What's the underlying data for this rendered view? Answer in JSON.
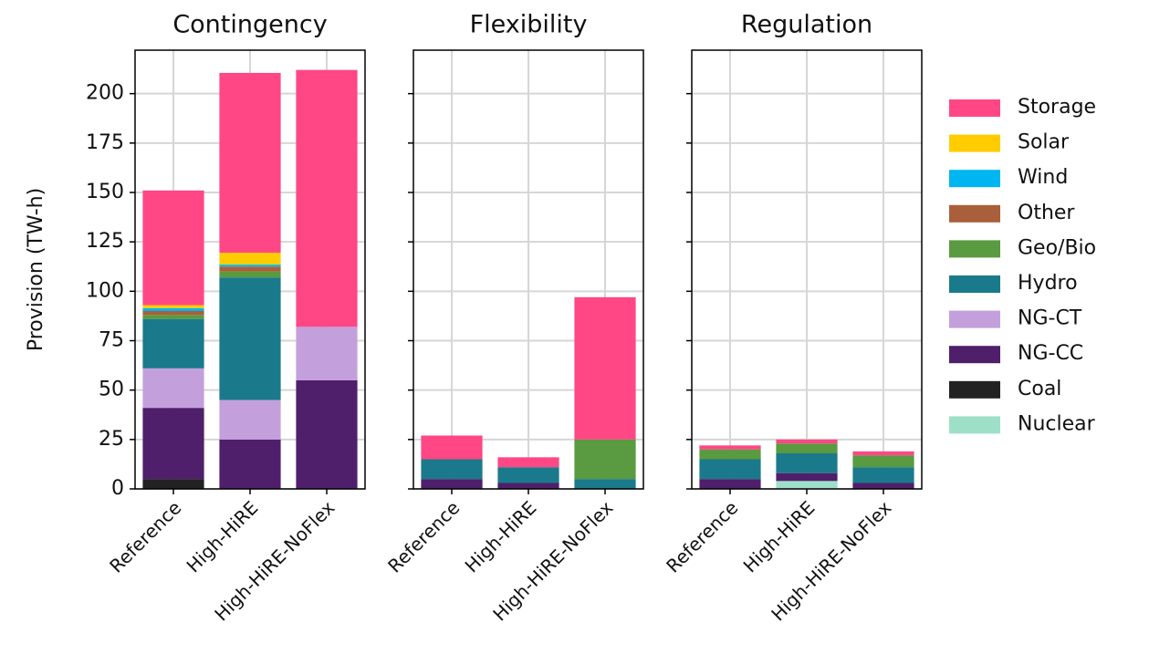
{
  "chart_data": [
    {
      "type": "stacked-bar",
      "title": "Contingency",
      "ylabel": "Provision (TW-h)",
      "categories": [
        "Reference",
        "High-HiRE",
        "High-HiRE-NoFlex"
      ],
      "ylim": [
        0,
        222
      ],
      "yticks": [
        0,
        25,
        50,
        75,
        100,
        125,
        150,
        175,
        200
      ],
      "grid": true,
      "series": [
        {
          "name": "Nuclear",
          "color": "#9edfc8",
          "values": [
            0,
            0,
            0
          ]
        },
        {
          "name": "Coal",
          "color": "#222222",
          "values": [
            5,
            0,
            0
          ]
        },
        {
          "name": "NG-CC",
          "color": "#4f1f6b",
          "values": [
            36,
            25,
            55
          ]
        },
        {
          "name": "NG-CT",
          "color": "#c3a0dc",
          "values": [
            20,
            20,
            27
          ]
        },
        {
          "name": "Hydro",
          "color": "#1a7a8c",
          "values": [
            25,
            62,
            0
          ]
        },
        {
          "name": "Geo/Bio",
          "color": "#5a9a40",
          "values": [
            2,
            3,
            0
          ]
        },
        {
          "name": "Other",
          "color": "#a9603a",
          "values": [
            2,
            2.5,
            0
          ]
        },
        {
          "name": "Wind",
          "color": "#00b6f0",
          "values": [
            1.5,
            1,
            0
          ]
        },
        {
          "name": "Solar",
          "color": "#ffcc00",
          "values": [
            1.5,
            6,
            0
          ]
        },
        {
          "name": "Storage",
          "color": "#ff4785",
          "values": [
            58,
            91,
            130
          ]
        }
      ]
    },
    {
      "type": "stacked-bar",
      "title": "Flexibility",
      "categories": [
        "Reference",
        "High-HiRE",
        "High-HiRE-NoFlex"
      ],
      "ylim": [
        0,
        222
      ],
      "yticks": [
        0,
        25,
        50,
        75,
        100,
        125,
        150,
        175,
        200
      ],
      "grid": true,
      "series": [
        {
          "name": "Nuclear",
          "color": "#9edfc8",
          "values": [
            0,
            0,
            0
          ]
        },
        {
          "name": "Coal",
          "color": "#222222",
          "values": [
            0,
            0,
            0
          ]
        },
        {
          "name": "NG-CC",
          "color": "#4f1f6b",
          "values": [
            5,
            3,
            0
          ]
        },
        {
          "name": "NG-CT",
          "color": "#c3a0dc",
          "values": [
            0,
            0,
            0
          ]
        },
        {
          "name": "Hydro",
          "color": "#1a7a8c",
          "values": [
            10,
            8,
            5
          ]
        },
        {
          "name": "Geo/Bio",
          "color": "#5a9a40",
          "values": [
            0,
            0,
            20
          ]
        },
        {
          "name": "Other",
          "color": "#a9603a",
          "values": [
            0,
            0,
            0
          ]
        },
        {
          "name": "Wind",
          "color": "#00b6f0",
          "values": [
            0,
            0,
            0
          ]
        },
        {
          "name": "Solar",
          "color": "#ffcc00",
          "values": [
            0,
            0,
            0
          ]
        },
        {
          "name": "Storage",
          "color": "#ff4785",
          "values": [
            12,
            5,
            72
          ]
        }
      ]
    },
    {
      "type": "stacked-bar",
      "title": "Regulation",
      "categories": [
        "Reference",
        "High-HiRE",
        "High-HiRE-NoFlex"
      ],
      "ylim": [
        0,
        222
      ],
      "yticks": [
        0,
        25,
        50,
        75,
        100,
        125,
        150,
        175,
        200
      ],
      "grid": true,
      "series": [
        {
          "name": "Nuclear",
          "color": "#9edfc8",
          "values": [
            0,
            4,
            0
          ]
        },
        {
          "name": "Coal",
          "color": "#222222",
          "values": [
            0,
            0,
            0
          ]
        },
        {
          "name": "NG-CC",
          "color": "#4f1f6b",
          "values": [
            5,
            4,
            3
          ]
        },
        {
          "name": "NG-CT",
          "color": "#c3a0dc",
          "values": [
            0,
            0,
            0
          ]
        },
        {
          "name": "Hydro",
          "color": "#1a7a8c",
          "values": [
            10,
            10,
            8
          ]
        },
        {
          "name": "Geo/Bio",
          "color": "#5a9a40",
          "values": [
            5,
            5,
            6
          ]
        },
        {
          "name": "Other",
          "color": "#a9603a",
          "values": [
            0,
            0,
            0
          ]
        },
        {
          "name": "Wind",
          "color": "#00b6f0",
          "values": [
            0,
            0,
            0
          ]
        },
        {
          "name": "Solar",
          "color": "#ffcc00",
          "values": [
            0,
            0,
            0
          ]
        },
        {
          "name": "Storage",
          "color": "#ff4785",
          "values": [
            2,
            2,
            2
          ]
        }
      ]
    }
  ]
}
